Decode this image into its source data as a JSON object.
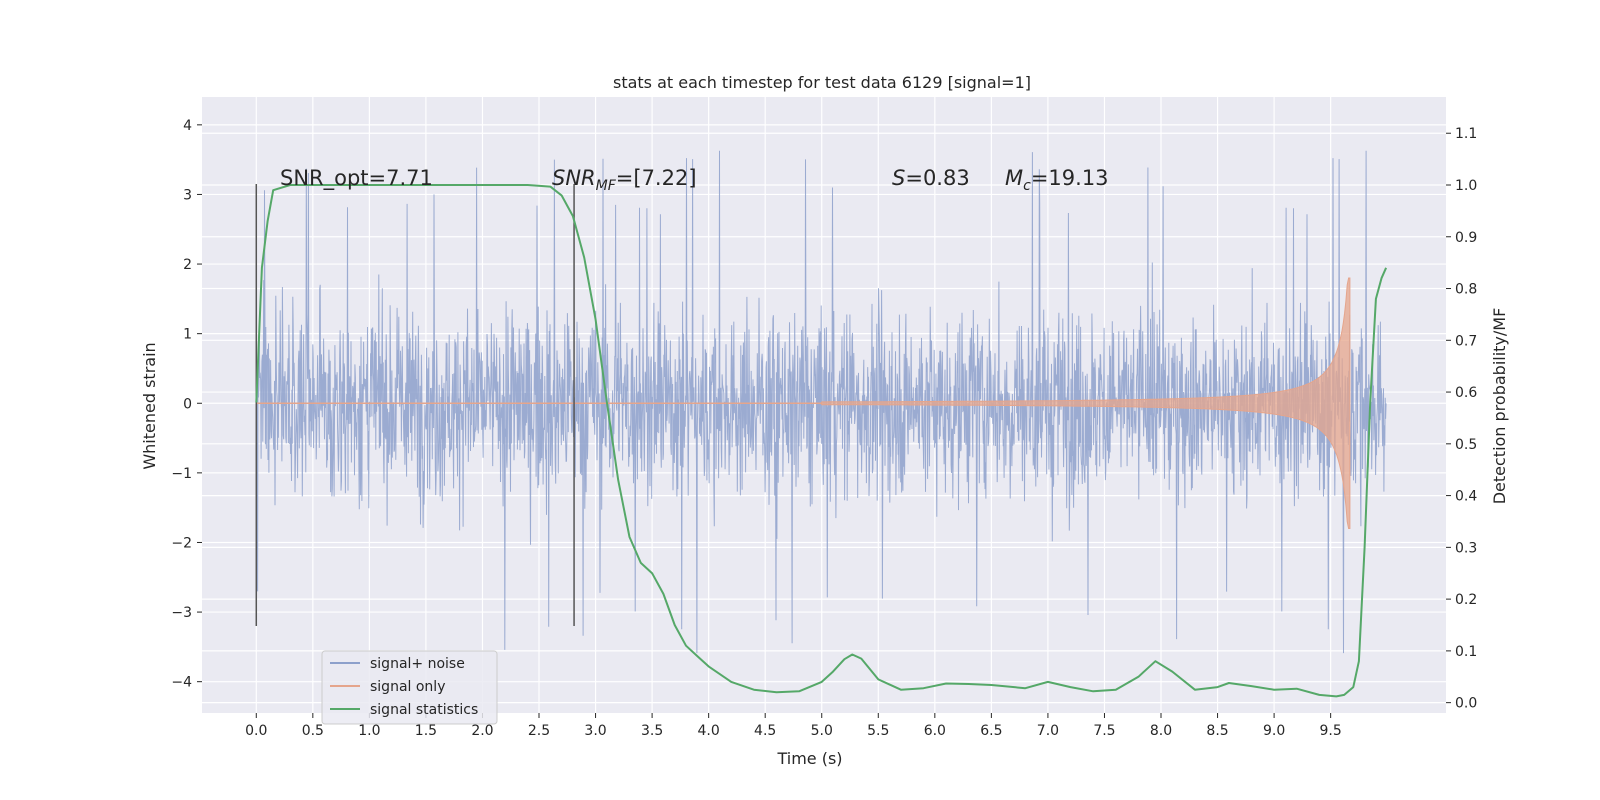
{
  "chart_data": {
    "type": "line",
    "title": "stats at each timestep for test data 6129 [signal=1]",
    "xlabel": "Time (s)",
    "ylabel": "Whitened strain",
    "y2label": "Detection probability/MF",
    "xlim": [
      -0.48,
      10.52
    ],
    "ylim": [
      -4.45,
      4.4
    ],
    "y2lim": [
      -0.02,
      1.17
    ],
    "x_ticks": [
      0.0,
      0.5,
      1.0,
      1.5,
      2.0,
      2.5,
      3.0,
      3.5,
      4.0,
      4.5,
      5.0,
      5.5,
      6.0,
      6.5,
      7.0,
      7.5,
      8.0,
      8.5,
      9.0,
      9.5
    ],
    "x_tick_labels": [
      "0.0",
      "0.5",
      "1.0",
      "1.5",
      "2.0",
      "2.5",
      "3.0",
      "3.5",
      "4.0",
      "4.5",
      "5.0",
      "5.5",
      "6.0",
      "6.5",
      "7.0",
      "7.5",
      "8.0",
      "8.5",
      "9.0",
      "9.5"
    ],
    "y_ticks": [
      -4,
      -3,
      -2,
      -1,
      0,
      1,
      2,
      3,
      4
    ],
    "y_tick_labels": [
      "−4",
      "−3",
      "−2",
      "−1",
      "0",
      "1",
      "2",
      "3",
      "4"
    ],
    "y2_ticks": [
      0.0,
      0.1,
      0.2,
      0.3,
      0.4,
      0.5,
      0.6,
      0.7,
      0.8,
      0.9,
      1.0,
      1.1
    ],
    "y2_tick_labels": [
      "0.0",
      "0.1",
      "0.2",
      "0.3",
      "0.4",
      "0.5",
      "0.6",
      "0.7",
      "0.8",
      "0.9",
      "1.0",
      "1.1"
    ],
    "grid": true,
    "legend": {
      "placement": "lower-left",
      "entries": [
        {
          "label": "signal+ noise",
          "color": "#8da0cb"
        },
        {
          "label": "signal only",
          "color": "#e5a58c"
        },
        {
          "label": "signal statistics",
          "color": "#55a868"
        }
      ]
    },
    "annotations": {
      "snr_opt": "SNR_opt=7.71",
      "snr_mf_sym": "SNR",
      "snr_mf_sub": "MF",
      "snr_mf_val": "=[7.22]",
      "s_sym": "S",
      "s_val": "=0.83",
      "mc_sym": "M",
      "mc_sub": "c",
      "mc_val": "=19.13"
    },
    "vertical_markers_x": [
      0.0,
      2.81
    ],
    "vertical_marker_range": [
      -3.2,
      3.15
    ],
    "noise": {
      "x_range": [
        0.0,
        9.99
      ],
      "typical_range": [
        -2.3,
        2.3
      ],
      "max": 4.0,
      "min": -4.0,
      "color": "#8da0cb"
    },
    "signal_only": {
      "x_start": 5.0,
      "x_end": 9.67,
      "peak_amplitude": 1.8,
      "color": "#e5a58c"
    },
    "series": [
      {
        "name": "signal statistics",
        "axis": "right",
        "color": "#55a868",
        "x": [
          0.0,
          0.05,
          0.1,
          0.15,
          0.3,
          0.5,
          1.0,
          1.5,
          2.0,
          2.4,
          2.6,
          2.7,
          2.8,
          2.9,
          3.0,
          3.1,
          3.2,
          3.3,
          3.4,
          3.5,
          3.6,
          3.7,
          3.8,
          3.9,
          4.0,
          4.2,
          4.4,
          4.6,
          4.8,
          5.0,
          5.1,
          5.2,
          5.27,
          5.35,
          5.5,
          5.7,
          5.9,
          6.1,
          6.3,
          6.5,
          6.8,
          7.0,
          7.2,
          7.4,
          7.6,
          7.8,
          7.95,
          8.1,
          8.3,
          8.5,
          8.6,
          8.8,
          9.0,
          9.2,
          9.4,
          9.55,
          9.62,
          9.7,
          9.75,
          9.8,
          9.85,
          9.9,
          9.95,
          9.99
        ],
        "y": [
          0.58,
          0.84,
          0.93,
          0.99,
          1.0,
          1.0,
          1.0,
          1.0,
          1.0,
          1.0,
          0.997,
          0.98,
          0.94,
          0.86,
          0.74,
          0.58,
          0.43,
          0.32,
          0.27,
          0.25,
          0.21,
          0.15,
          0.11,
          0.09,
          0.07,
          0.04,
          0.025,
          0.02,
          0.022,
          0.04,
          0.06,
          0.084,
          0.093,
          0.085,
          0.045,
          0.025,
          0.028,
          0.037,
          0.036,
          0.034,
          0.028,
          0.04,
          0.03,
          0.022,
          0.025,
          0.05,
          0.08,
          0.06,
          0.025,
          0.03,
          0.038,
          0.032,
          0.025,
          0.027,
          0.015,
          0.012,
          0.015,
          0.03,
          0.08,
          0.3,
          0.58,
          0.78,
          0.82,
          0.84
        ]
      }
    ]
  }
}
